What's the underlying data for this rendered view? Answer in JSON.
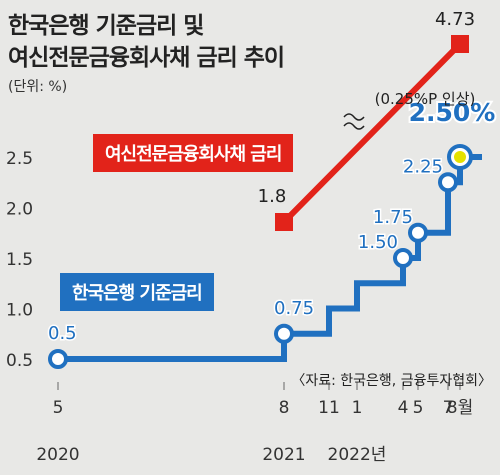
{
  "header": {
    "title_line1": "한국은행 기준금리 및",
    "title_line2": "여신전문금융회사채 금리 추이",
    "unit": "(단위: %)"
  },
  "source": "〈자료: 한국은행, 금융투자협회〉",
  "chart_data": {
    "type": "line",
    "title": "한국은행 기준금리 및 여신전문금융회사채 금리 추이",
    "unit": "(단위: %)",
    "y_ticks": [
      "0.5",
      "1.0",
      "1.5",
      "2.0",
      "2.5"
    ],
    "ylim": [
      0.3,
      2.75
    ],
    "x_tick_labels": [
      {
        "month": "5",
        "year": "2020",
        "t": 0
      },
      {
        "month": "8",
        "year": "2021",
        "t": 15
      },
      {
        "month": "11",
        "year": "",
        "t": 18
      },
      {
        "month": "1",
        "year": "2022년",
        "t": 20
      },
      {
        "month": "4",
        "year": "",
        "t": 23
      },
      {
        "month": "5",
        "year": "",
        "t": 24
      },
      {
        "month": "7",
        "year": "",
        "t": 26
      },
      {
        "month": "8월",
        "year": "",
        "t": 27
      }
    ],
    "x_month_index": "months since 2020-05",
    "series": [
      {
        "name": "한국은행 기준금리",
        "color": "#2070c0",
        "step": true,
        "points": [
          {
            "t": 0,
            "y": 0.5
          },
          {
            "t": 15,
            "y": 0.75
          },
          {
            "t": 18,
            "y": 1.0
          },
          {
            "t": 20,
            "y": 1.25
          },
          {
            "t": 23,
            "y": 1.5
          },
          {
            "t": 24,
            "y": 1.75
          },
          {
            "t": 26,
            "y": 2.25
          },
          {
            "t": 27,
            "y": 2.5
          }
        ],
        "labels": [
          {
            "t": 0,
            "text": "0.5"
          },
          {
            "t": 15,
            "text": "0.75"
          },
          {
            "t": 23,
            "text": "1.50"
          },
          {
            "t": 24,
            "text": "1.75"
          },
          {
            "t": 26,
            "text": "2.25"
          },
          {
            "t": 27,
            "text": "2.50%"
          }
        ]
      },
      {
        "name": "여신전문금융회사채 금리",
        "color": "#e2231a",
        "start": {
          "t": 15,
          "y": 1.8,
          "label": "1.8"
        },
        "end": {
          "t": 27,
          "y": 4.73,
          "label": "4.73"
        }
      }
    ],
    "annotation": "(0.25%P 인상)",
    "axis_break": true
  }
}
